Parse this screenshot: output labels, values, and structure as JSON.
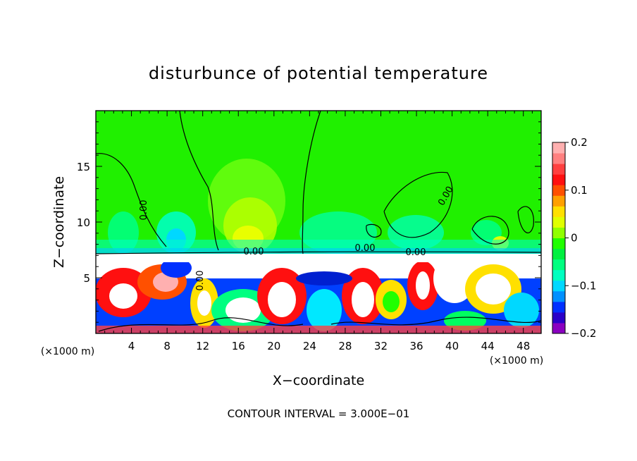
{
  "chart_data": {
    "type": "heatmap",
    "title": "disturbunce of potential temperature",
    "xlabel": "X−coordinate",
    "ylabel": "Z−coordinate",
    "x_unit": "(×1000 m)",
    "z_unit": "(×1000 m)",
    "xlim": [
      0,
      50
    ],
    "ylim": [
      0,
      20
    ],
    "x_ticks": [
      "4",
      "8",
      "12",
      "16",
      "20",
      "24",
      "28",
      "32",
      "36",
      "40",
      "44",
      "48"
    ],
    "y_ticks": [
      "5",
      "10",
      "15"
    ],
    "colorbar": {
      "range": [
        -0.2,
        0.2
      ],
      "tick_labels": [
        "0.2",
        "0.1",
        "0",
        "−0.1",
        "−0.2"
      ],
      "colors": [
        "#8a00c0",
        "#2a00c8",
        "#0030ff",
        "#0090ff",
        "#00d8ff",
        "#00ffc0",
        "#00ff80",
        "#00f040",
        "#20ff00",
        "#90ff00",
        "#e0ff00",
        "#ffe000",
        "#ffa000",
        "#ff5000",
        "#ff1010",
        "#ff4040",
        "#ff8080",
        "#ffb0b0"
      ]
    },
    "contour_labels": [
      "0.00",
      "0.00",
      "0.00",
      "0.00",
      "0.00",
      "0.00"
    ],
    "contour_interval": "CONTOUR INTERVAL = 3.000E−01",
    "grid": false
  }
}
